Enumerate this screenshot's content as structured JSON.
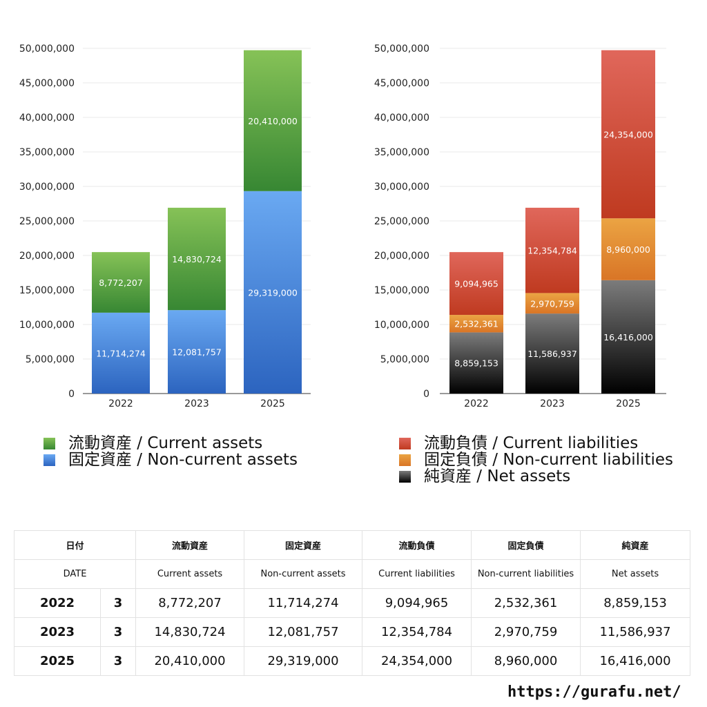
{
  "chart_data": [
    {
      "type": "bar",
      "stacked": true,
      "categories": [
        "2022",
        "2023",
        "2025"
      ],
      "ylim": [
        0,
        50000000
      ],
      "yticks": [
        0,
        5000000,
        10000000,
        15000000,
        20000000,
        25000000,
        30000000,
        35000000,
        40000000,
        45000000,
        50000000
      ],
      "ytick_labels": [
        "0",
        "5,000,000",
        "10,000,000",
        "15,000,000",
        "20,000,000",
        "25,000,000",
        "30,000,000",
        "35,000,000",
        "40,000,000",
        "45,000,000",
        "50,000,000"
      ],
      "grid": true,
      "legend_position": "bottom",
      "series": [
        {
          "name": "固定資産 / Non-current assets",
          "values": [
            11714274,
            12081757,
            29319000
          ],
          "labels": [
            "11,714,274",
            "12,081,757",
            "29,319,000"
          ],
          "color_top": "#6aa9f2",
          "color_bottom": "#2c64bf"
        },
        {
          "name": "流動資産 / Current assets",
          "values": [
            8772207,
            14830724,
            20410000
          ],
          "labels": [
            "8,772,207",
            "14,830,724",
            "20,410,000"
          ],
          "color_top": "#86c257",
          "color_bottom": "#378733"
        }
      ]
    },
    {
      "type": "bar",
      "stacked": true,
      "categories": [
        "2022",
        "2023",
        "2025"
      ],
      "ylim": [
        0,
        50000000
      ],
      "yticks": [
        0,
        5000000,
        10000000,
        15000000,
        20000000,
        25000000,
        30000000,
        35000000,
        40000000,
        45000000,
        50000000
      ],
      "ytick_labels": [
        "0",
        "5,000,000",
        "10,000,000",
        "15,000,000",
        "20,000,000",
        "25,000,000",
        "30,000,000",
        "35,000,000",
        "40,000,000",
        "45,000,000",
        "50,000,000"
      ],
      "grid": true,
      "legend_position": "bottom",
      "series": [
        {
          "name": "純資産 / Net assets",
          "values": [
            8859153,
            11586937,
            16416000
          ],
          "labels": [
            "8,859,153",
            "11,586,937",
            "16,416,000"
          ],
          "color_top": "#7c7c7c",
          "color_bottom": "#000000"
        },
        {
          "name": "固定負債 / Non-current liabilities",
          "values": [
            2532361,
            2970759,
            8960000
          ],
          "labels": [
            "2,532,361",
            "2,970,759",
            "8,960,000"
          ],
          "color_top": "#eba443",
          "color_bottom": "#d97526"
        },
        {
          "name": "流動負債 / Current liabilities",
          "values": [
            9094965,
            12354784,
            24354000
          ],
          "labels": [
            "9,094,965",
            "12,354,784",
            "24,354,000"
          ],
          "color_top": "#e0675b",
          "color_bottom": "#bf3a20"
        }
      ]
    }
  ],
  "legends": {
    "left": [
      {
        "label": "流動資産 / Current assets",
        "color": "#4f9e3f"
      },
      {
        "label": "固定資産 / Non-current assets",
        "color": "#3f7ed6"
      }
    ],
    "right": [
      {
        "label": "流動負債 / Current liabilities",
        "color": "#d04a38"
      },
      {
        "label": "固定負債 / Non-current liabilities",
        "color": "#e38a34"
      },
      {
        "label": "純資産 / Net assets",
        "color": "#333333"
      }
    ]
  },
  "table": {
    "header_ja": [
      "日付",
      "流動資産",
      "固定資産",
      "流動負債",
      "固定負債",
      "純資産"
    ],
    "header_en": [
      "DATE",
      "Current assets",
      "Non-current assets",
      "Current liabilities",
      "Non-current liabilities",
      "Net assets"
    ],
    "rows": [
      {
        "year": "2022",
        "month": "3",
        "values": [
          "8,772,207",
          "11,714,274",
          "9,094,965",
          "2,532,361",
          "8,859,153"
        ]
      },
      {
        "year": "2023",
        "month": "3",
        "values": [
          "14,830,724",
          "12,081,757",
          "12,354,784",
          "2,970,759",
          "11,586,937"
        ]
      },
      {
        "year": "2025",
        "month": "3",
        "values": [
          "20,410,000",
          "29,319,000",
          "24,354,000",
          "8,960,000",
          "16,416,000"
        ]
      }
    ]
  },
  "footer": {
    "url": "https://gurafu.net/"
  }
}
